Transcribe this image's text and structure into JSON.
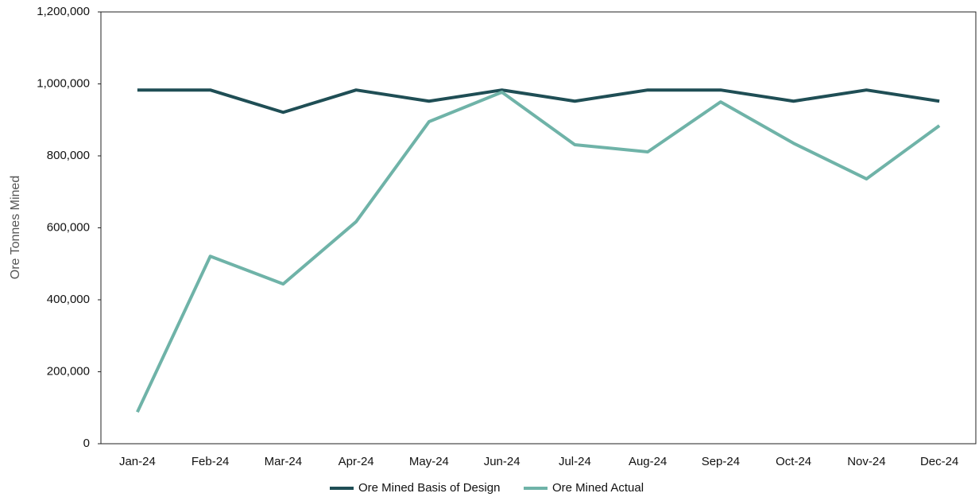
{
  "chart_data": {
    "type": "line",
    "y_label": "Ore Tonnes Mined",
    "categories": [
      "Jan-24",
      "Feb-24",
      "Mar-24",
      "Apr-24",
      "May-24",
      "Jun-24",
      "Jul-24",
      "Aug-24",
      "Sep-24",
      "Oct-24",
      "Nov-24",
      "Dec-24"
    ],
    "series": [
      {
        "name": "Ore Mined Basis of Design",
        "color": "#1f4e55",
        "values": [
          983000,
          983000,
          921000,
          983000,
          952000,
          983000,
          952000,
          983000,
          983000,
          952000,
          983000,
          952000
        ]
      },
      {
        "name": "Ore Mined Actual",
        "color": "#6fb3a8",
        "values": [
          88000,
          521000,
          444000,
          617000,
          895000,
          977000,
          831000,
          811000,
          950000,
          835000,
          736000,
          884000
        ]
      }
    ],
    "ylim": [
      0,
      1200000
    ],
    "yticks": [
      0,
      {
        "value": 200000,
        "label": "200,000"
      },
      {
        "value": 400000,
        "label": "400,000"
      },
      {
        "value": 600000,
        "label": "600,000"
      },
      {
        "value": 800000,
        "label": "800,000"
      },
      {
        "value": 1000000,
        "label": "1,000,000"
      },
      {
        "value": 1200000,
        "label": "1,200,000"
      }
    ],
    "grid": false,
    "legend": "bottom"
  }
}
